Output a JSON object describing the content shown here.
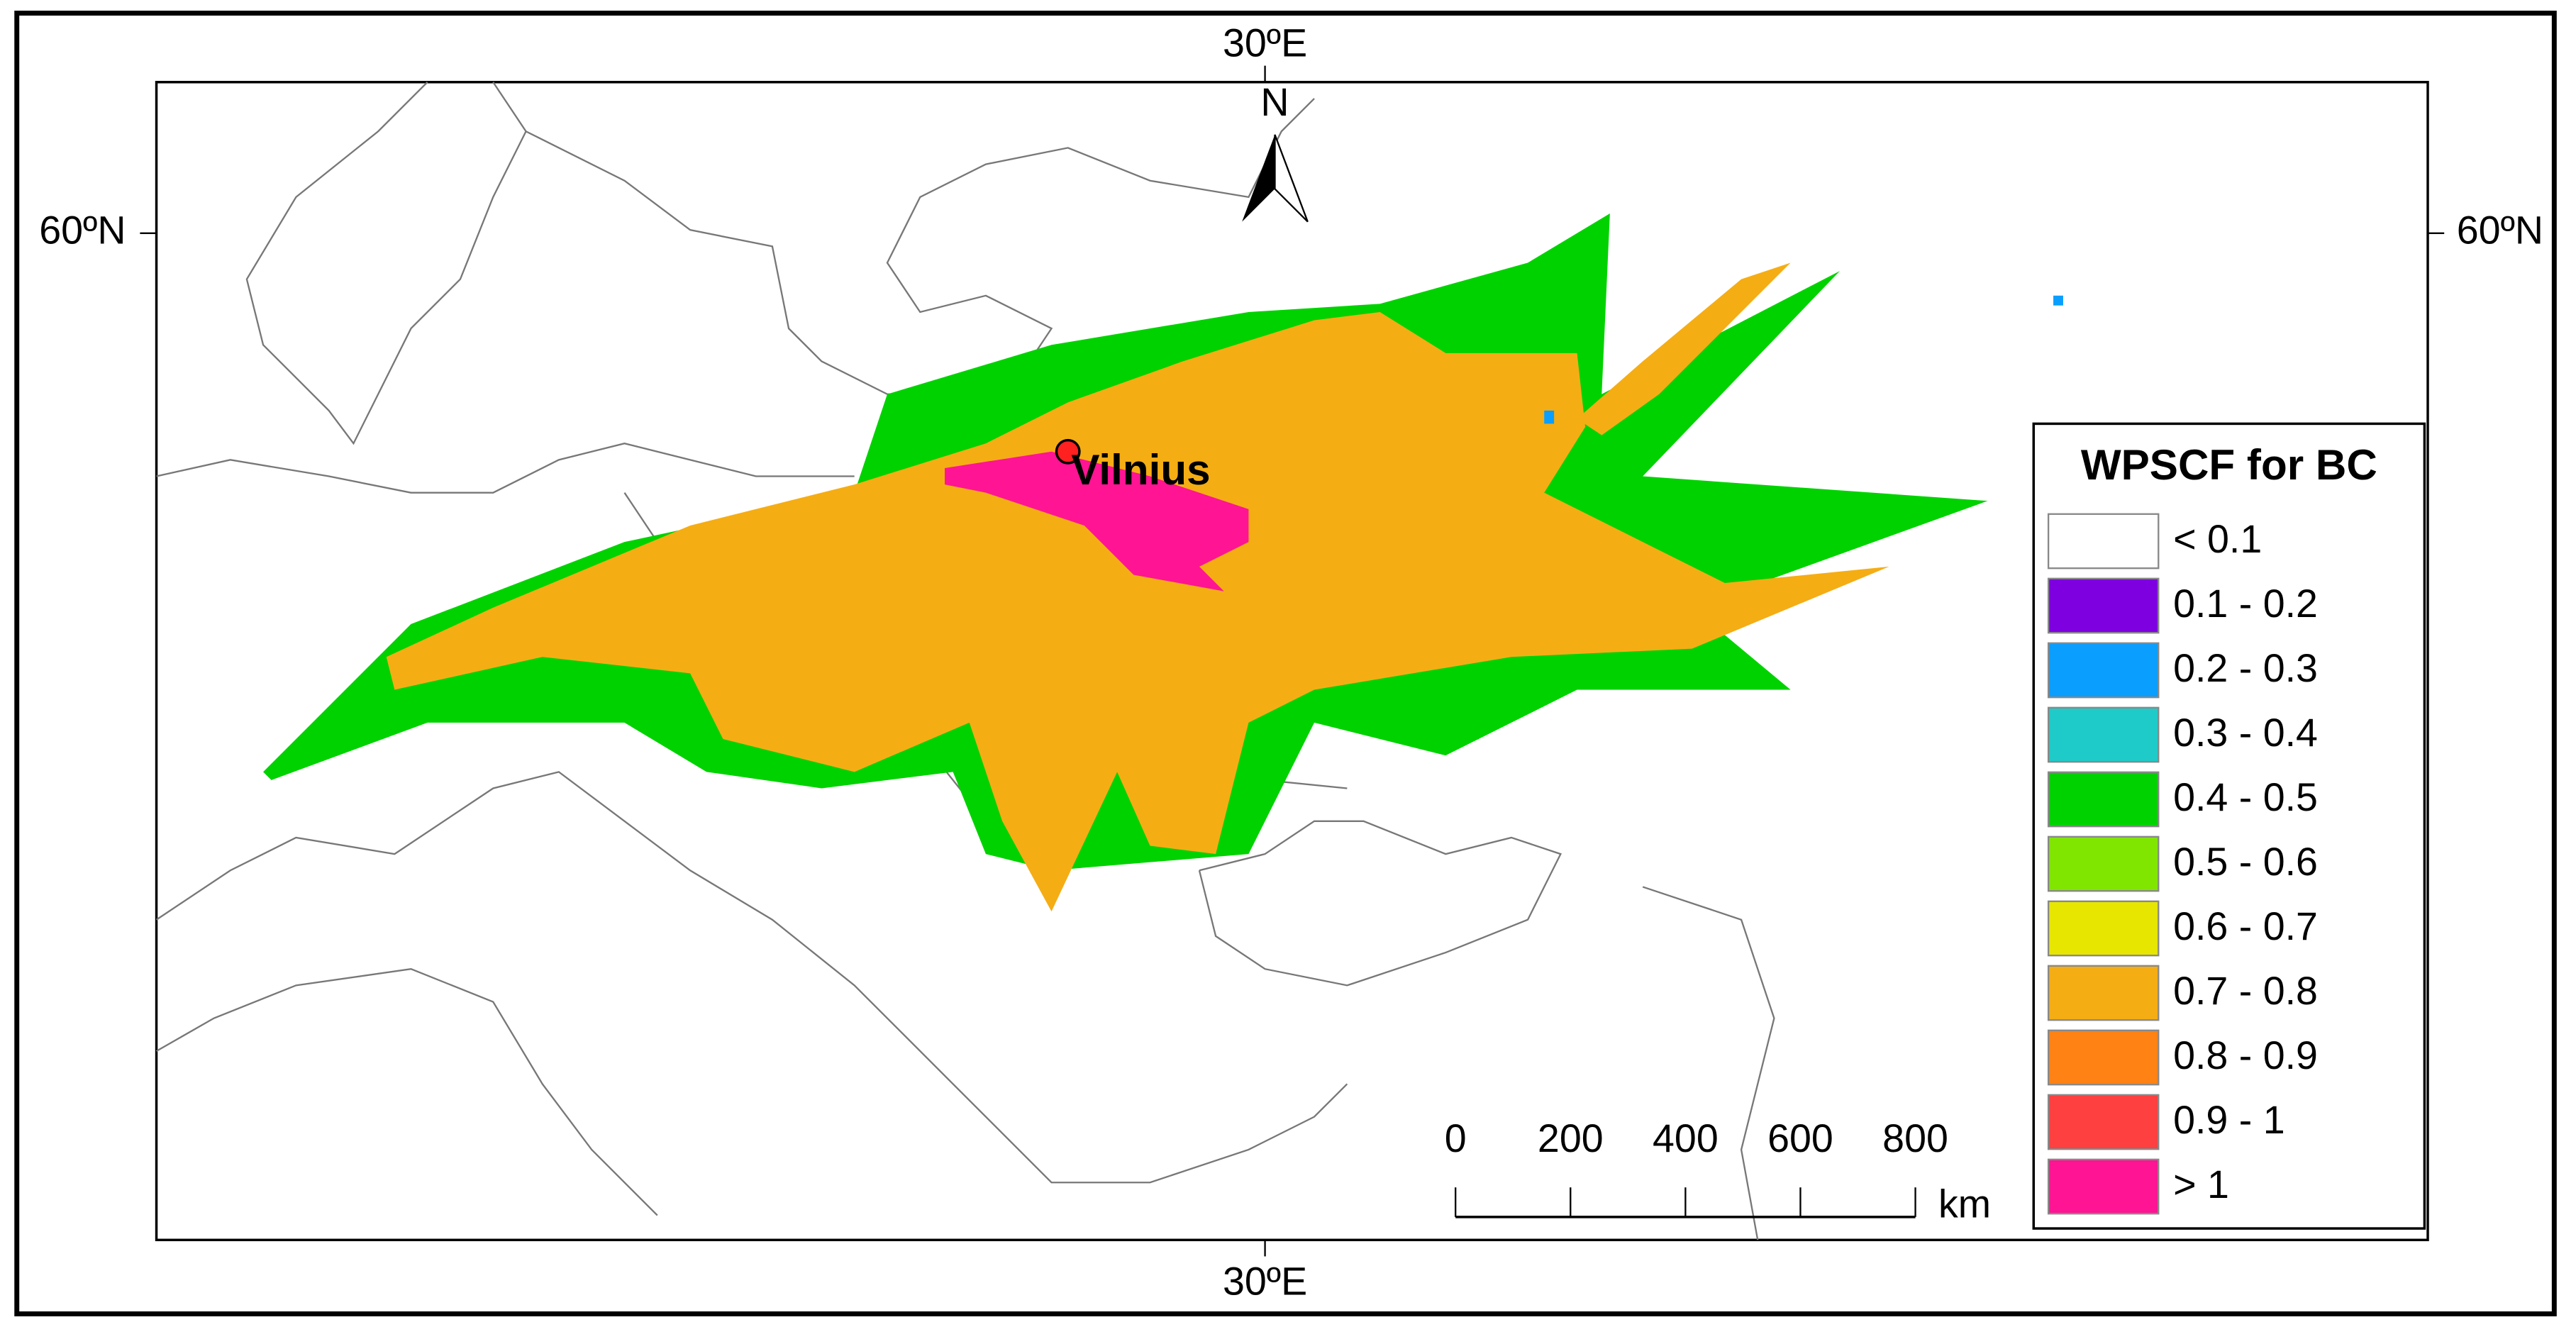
{
  "map": {
    "labels": {
      "top_lon": "30ºE",
      "bottom_lon": "30ºE",
      "left_lat": "60ºN",
      "right_lat": "60ºN",
      "north": "N",
      "city": "Vilnius"
    },
    "legend": {
      "title": "WPSCF for BC",
      "items": [
        {
          "label": "< 0.1",
          "color": "#ffffff"
        },
        {
          "label": "0.1 - 0.2",
          "color": "#7e00e0"
        },
        {
          "label": "0.2 - 0.3",
          "color": "#0a9eff"
        },
        {
          "label": "0.3 - 0.4",
          "color": "#1ecbc8"
        },
        {
          "label": "0.4 - 0.5",
          "color": "#00d200"
        },
        {
          "label": "0.5 - 0.6",
          "color": "#80e600"
        },
        {
          "label": "0.6 - 0.7",
          "color": "#e6e600"
        },
        {
          "label": "0.7 - 0.8",
          "color": "#f5ad14"
        },
        {
          "label": "0.8 - 0.9",
          "color": "#ff8214"
        },
        {
          "label": "0.9 - 1",
          "color": "#ff4040"
        },
        {
          "label": "> 1",
          "color": "#ff1493"
        }
      ]
    },
    "scale_bar": {
      "ticks": [
        0,
        200,
        400,
        600,
        800
      ],
      "unit": "km"
    }
  }
}
